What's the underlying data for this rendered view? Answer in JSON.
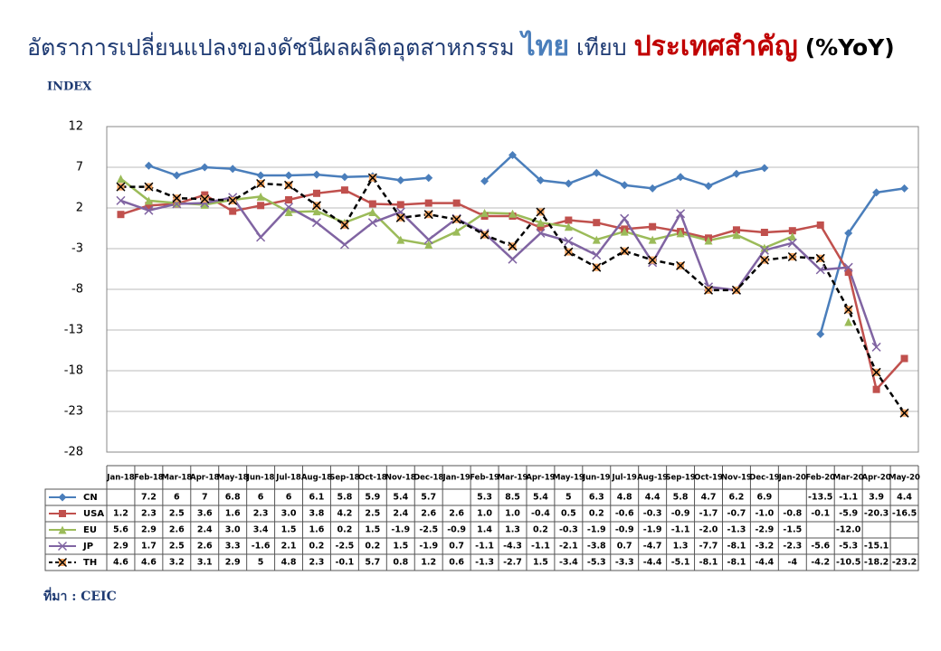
{
  "chart_data": {
    "type": "line",
    "title": [
      "อัตราการเปลี่ยนแปลงของดัชนีผลผลิตอุตสาหกรรม",
      "ไทย",
      "เทียบ",
      "ประเทศสำคัญ",
      "(%YoY)"
    ],
    "title_colors": [
      "#1f3b73",
      "#4a7ebb",
      "#1f3b73",
      "#c00000",
      "#000000"
    ],
    "ylabel": "INDEX",
    "source": "ที่มา : CEIC",
    "categories": [
      "Jan-18",
      "Feb-18",
      "Mar-18",
      "Apr-18",
      "May-18",
      "Jun-18",
      "Jul-18",
      "Aug-18",
      "Sep-18",
      "Oct-18",
      "Nov-18",
      "Dec-18",
      "Jan-19",
      "Feb-19",
      "Mar-19",
      "Apr-19",
      "May-19",
      "Jun-19",
      "Jul-19",
      "Aug-19",
      "Sep-19",
      "Oct-19",
      "Nov-19",
      "Dec-19",
      "Jan-20",
      "Feb-20",
      "Mar-20",
      "Apr-20",
      "May-20"
    ],
    "ylim": [
      -28,
      12
    ],
    "yticks": [
      12,
      7,
      2,
      -3,
      -8,
      -13,
      -18,
      -23,
      -28
    ],
    "grid": true,
    "series": [
      {
        "name": "CN",
        "color": "#4a7ebb",
        "marker": "diamond",
        "values": [
          null,
          7.2,
          6,
          7,
          6.8,
          6,
          6,
          6.1,
          5.8,
          5.9,
          5.4,
          5.7,
          null,
          5.3,
          8.5,
          5.4,
          5,
          6.3,
          4.8,
          4.4,
          5.8,
          4.7,
          6.2,
          6.9,
          null,
          -13.5,
          -1.1,
          3.9,
          4.4
        ],
        "value_labels": [
          null,
          "7.2",
          "6",
          "7",
          "6.8",
          "6",
          "6",
          "6.1",
          "5.8",
          "5.9",
          "5.4",
          "5.7",
          null,
          "5.3",
          "8.5",
          "5.4",
          "5",
          "6.3",
          "4.8",
          "4.4",
          "5.8",
          "4.7",
          "6.2",
          "6.9",
          null,
          "-13.5",
          "-1.1",
          "3.9",
          "4.4"
        ]
      },
      {
        "name": "USA",
        "color": "#c0504d",
        "marker": "square",
        "values": [
          1.2,
          2.3,
          2.5,
          3.6,
          1.6,
          2.3,
          3.0,
          3.8,
          4.2,
          2.5,
          2.4,
          2.6,
          2.6,
          1.0,
          1.0,
          -0.4,
          0.5,
          0.2,
          -0.6,
          -0.3,
          -0.9,
          -1.7,
          -0.7,
          -1.0,
          -0.8,
          -0.1,
          -5.9,
          -20.3,
          -16.5
        ],
        "value_labels": [
          "1.2",
          "2.3",
          "2.5",
          "3.6",
          "1.6",
          "2.3",
          "3.0",
          "3.8",
          "4.2",
          "2.5",
          "2.4",
          "2.6",
          "2.6",
          "1.0",
          "1.0",
          "-0.4",
          "0.5",
          "0.2",
          "-0.6",
          "-0.3",
          "-0.9",
          "-1.7",
          "-0.7",
          "-1.0",
          "-0.8",
          "-0.1",
          "-5.9",
          "-20.3",
          "-16.5"
        ]
      },
      {
        "name": "EU",
        "color": "#9bbb59",
        "marker": "triangle",
        "values": [
          5.6,
          2.9,
          2.6,
          2.4,
          3.0,
          3.4,
          1.5,
          1.6,
          0.2,
          1.5,
          -1.9,
          -2.5,
          -0.9,
          1.4,
          1.3,
          0.2,
          -0.3,
          -1.9,
          -0.9,
          -1.9,
          -1.1,
          -2.0,
          -1.3,
          -2.9,
          -1.5,
          null,
          -12.0,
          null,
          null
        ],
        "value_labels": [
          "5.6",
          "2.9",
          "2.6",
          "2.4",
          "3.0",
          "3.4",
          "1.5",
          "1.6",
          "0.2",
          "1.5",
          "-1.9",
          "-2.5",
          "-0.9",
          "1.4",
          "1.3",
          "0.2",
          "-0.3",
          "-1.9",
          "-0.9",
          "-1.9",
          "-1.1",
          "-2.0",
          "-1.3",
          "-2.9",
          "-1.5",
          null,
          "-12.0",
          null,
          null
        ]
      },
      {
        "name": "JP",
        "color": "#8064a2",
        "marker": "x",
        "values": [
          2.9,
          1.7,
          2.5,
          2.6,
          3.3,
          -1.6,
          2.1,
          0.2,
          -2.5,
          0.2,
          1.5,
          -1.9,
          0.7,
          -1.1,
          -4.3,
          -1.1,
          -2.1,
          -3.8,
          0.7,
          -4.7,
          1.3,
          -7.7,
          -8.1,
          -3.2,
          -2.3,
          -5.6,
          -5.3,
          -15.1,
          null
        ],
        "value_labels": [
          "2.9",
          "1.7",
          "2.5",
          "2.6",
          "3.3",
          "-1.6",
          "2.1",
          "0.2",
          "-2.5",
          "0.2",
          "1.5",
          "-1.9",
          "0.7",
          "-1.1",
          "-4.3",
          "-1.1",
          "-2.1",
          "-3.8",
          "0.7",
          "-4.7",
          "1.3",
          "-7.7",
          "-8.1",
          "-3.2",
          "-2.3",
          "-5.6",
          "-5.3",
          "-15.1",
          null
        ]
      },
      {
        "name": "TH",
        "color": "#000000",
        "marker": "star",
        "dashed": true,
        "values": [
          4.6,
          4.6,
          3.2,
          3.1,
          2.9,
          5,
          4.8,
          2.3,
          -0.1,
          5.7,
          0.8,
          1.2,
          0.6,
          -1.3,
          -2.7,
          1.5,
          -3.4,
          -5.3,
          -3.3,
          -4.4,
          -5.1,
          -8.1,
          -8.1,
          -4.4,
          -4,
          -4.2,
          -10.5,
          -18.2,
          -23.2
        ],
        "value_labels": [
          "4.6",
          "4.6",
          "3.2",
          "3.1",
          "2.9",
          "5",
          "4.8",
          "2.3",
          "-0.1",
          "5.7",
          "0.8",
          "1.2",
          "0.6",
          "-1.3",
          "-2.7",
          "1.5",
          "-3.4",
          "-5.3",
          "-3.3",
          "-4.4",
          "-5.1",
          "-8.1",
          "-8.1",
          "-4.4",
          "-4",
          "-4.2",
          "-10.5",
          "-18.2",
          "-23.2"
        ]
      }
    ]
  }
}
